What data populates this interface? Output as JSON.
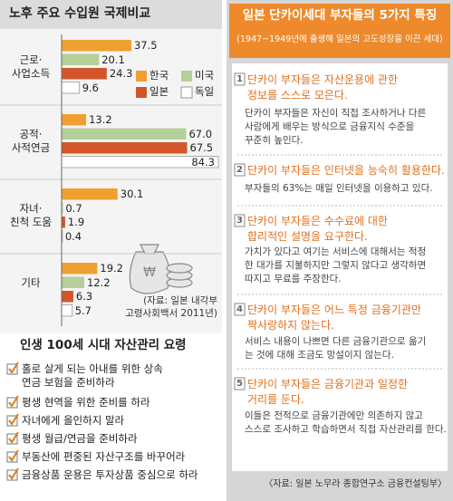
{
  "chart_data": {
    "type": "bar",
    "orientation": "horizontal",
    "title": "노후 주요 수입원 국제비교",
    "categories": [
      "근로·\n사업소득",
      "공적·\n사적연금",
      "자녀·\n친척 도움",
      "기타"
    ],
    "series": [
      {
        "name": "한국",
        "color": "#f0a030",
        "values": [
          37.5,
          13.2,
          30.1,
          19.2
        ],
        "value_labels": [
          "37.5",
          "13.2",
          "30.1",
          "19.2"
        ]
      },
      {
        "name": "미국",
        "color": "#b5cf9a",
        "values": [
          20.1,
          67.0,
          0.7,
          12.2
        ],
        "value_labels": [
          "20.1",
          "67.0",
          "0.7",
          "12.2"
        ]
      },
      {
        "name": "일본",
        "color": "#d2562a",
        "values": [
          24.3,
          67.5,
          1.9,
          6.3
        ],
        "value_labels": [
          "24.3",
          "67.5",
          "1.9",
          "6.3"
        ]
      },
      {
        "name": "독일",
        "color": "#ffffff",
        "values": [
          9.6,
          84.3,
          0.4,
          5.7
        ],
        "value_labels": [
          "9.6",
          "84.3",
          "0.4",
          "5.7"
        ]
      }
    ],
    "source": "(자료: 일본 내각부\n고령사회백서 2011년)"
  },
  "tips": {
    "title": "인생 100세 시대 자산관리 요령",
    "items": [
      "홀로 살게 되는 아내를 위한 상속\n연금 보험을 준비하라",
      "평생 현역을 위한 준비를 하라",
      "자녀에게 올인하지 말라",
      "평생 월급/연금을 준비하라",
      "부동산에 편중된 자산구조를 바꾸어라",
      "금융상품 운용은 투자상품 중심으로 하라"
    ]
  },
  "features": {
    "title": "일본 단카이세대 부자들의 5가지 특징",
    "subtitle": "(1947~1949년에 출생해 일본의 고도성장을 이끈 세대)",
    "items": [
      {
        "number": "1",
        "heading": "단카이 부자들은 자산운용에 관한\n정보를 스스로 모은다.",
        "body": "단카이 부자들은 자신이 직접 조사하거나 다른\n사람에게 배우는 방식으로 금융지식 수준을\n꾸준히 높인다."
      },
      {
        "number": "2",
        "heading": "단카이 부자들은 인터넷을 능숙히 활용한다.",
        "body": "부자들의 63%는 매일 인터넷을 이용하고 있다."
      },
      {
        "number": "3",
        "heading": "단카이 부자들은 수수료에 대한\n합리적인 설명을 요구한다.",
        "body": "가치가 있다고 여기는 서비스에 대해서는 적정\n한 대가를 지불하지만 그렇지 않다고 생각하면\n따지고 무료를 주장한다."
      },
      {
        "number": "4",
        "heading": "단카이 부자들은 어느 특정 금융기관만\n짝사랑하지 않는다.",
        "body": "서비스 내용이 나쁘면 다른 금융기관으로 옮기\n는 것에 대해 조금도 망설이지 않는다."
      },
      {
        "number": "5",
        "heading": "단카이 부자들은 금융기관과 일정한\n거리를 둔다.",
        "body": "이들은 전적으로 금융기관에만 의존하지 않고\n스스로 조사하고 학습하면서 직접 자산관리를 한다."
      }
    ],
    "source": "〈자료: 일본 노무라 종합연구소 금융컨설팅부〉"
  }
}
